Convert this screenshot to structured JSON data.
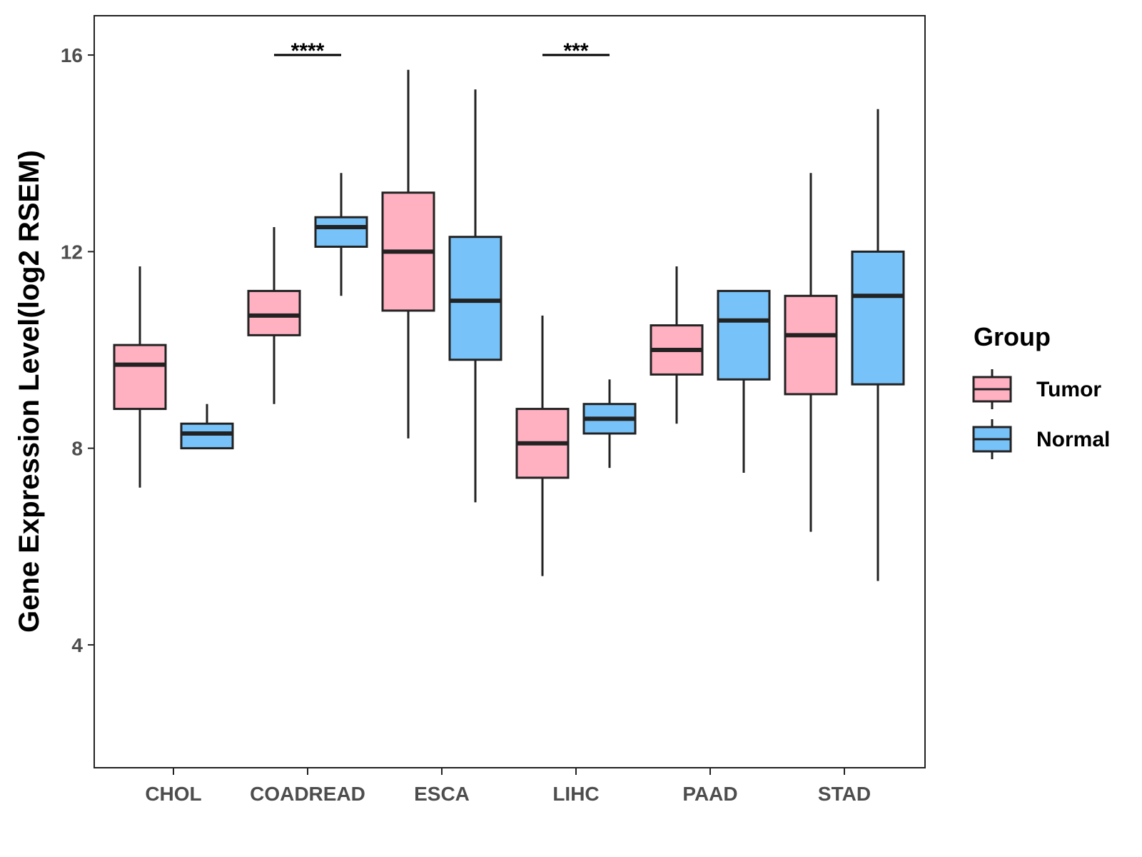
{
  "chart_data": {
    "type": "boxplot",
    "title": "",
    "xlabel": "",
    "ylabel": "Gene Expression Level(log2 RSEM)",
    "ylim": [
      1.5,
      16.8
    ],
    "yticks": [
      4,
      8,
      12,
      16
    ],
    "grid": false,
    "categories": [
      "CHOL",
      "COADREAD",
      "ESCA",
      "LIHC",
      "PAAD",
      "STAD"
    ],
    "legend": {
      "title": "Group",
      "position": "right",
      "entries": [
        {
          "name": "Tumor",
          "color": "#FFB0C1"
        },
        {
          "name": "Normal",
          "color": "#77C2F8"
        }
      ]
    },
    "series": [
      {
        "name": "Tumor",
        "color": "#FFB0C1",
        "boxes": [
          {
            "category": "CHOL",
            "whisker_low": 7.2,
            "q1": 8.8,
            "median": 9.7,
            "q3": 10.1,
            "whisker_high": 11.7
          },
          {
            "category": "COADREAD",
            "whisker_low": 8.9,
            "q1": 10.3,
            "median": 10.7,
            "q3": 11.2,
            "whisker_high": 12.5
          },
          {
            "category": "ESCA",
            "whisker_low": 8.2,
            "q1": 10.8,
            "median": 12.0,
            "q3": 13.2,
            "whisker_high": 15.7
          },
          {
            "category": "LIHC",
            "whisker_low": 5.4,
            "q1": 7.4,
            "median": 8.1,
            "q3": 8.8,
            "whisker_high": 10.7
          },
          {
            "category": "PAAD",
            "whisker_low": 8.5,
            "q1": 9.5,
            "median": 10.0,
            "q3": 10.5,
            "whisker_high": 11.7
          },
          {
            "category": "STAD",
            "whisker_low": 6.3,
            "q1": 9.1,
            "median": 10.3,
            "q3": 11.1,
            "whisker_high": 13.6
          }
        ]
      },
      {
        "name": "Normal",
        "color": "#77C2F8",
        "boxes": [
          {
            "category": "CHOL",
            "whisker_low": 8.0,
            "q1": 8.0,
            "median": 8.3,
            "q3": 8.5,
            "whisker_high": 8.9
          },
          {
            "category": "COADREAD",
            "whisker_low": 11.1,
            "q1": 12.1,
            "median": 12.5,
            "q3": 12.7,
            "whisker_high": 13.6
          },
          {
            "category": "ESCA",
            "whisker_low": 6.9,
            "q1": 9.8,
            "median": 11.0,
            "q3": 12.3,
            "whisker_high": 15.3
          },
          {
            "category": "LIHC",
            "whisker_low": 7.6,
            "q1": 8.3,
            "median": 8.6,
            "q3": 8.9,
            "whisker_high": 9.4
          },
          {
            "category": "PAAD",
            "whisker_low": 7.5,
            "q1": 9.4,
            "median": 10.6,
            "q3": 11.2,
            "whisker_high": 11.2
          },
          {
            "category": "STAD",
            "whisker_low": 5.3,
            "q1": 9.3,
            "median": 11.1,
            "q3": 12.0,
            "whisker_high": 14.9
          }
        ]
      }
    ],
    "annotations": [
      {
        "category": "COADREAD",
        "label": "****",
        "y": 16.0
      },
      {
        "category": "LIHC",
        "label": "***",
        "y": 16.0
      }
    ]
  }
}
